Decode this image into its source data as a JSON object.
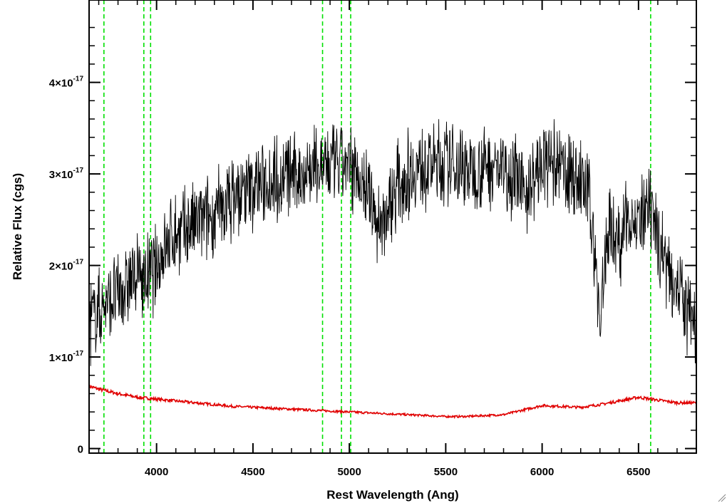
{
  "chart_data": {
    "type": "line",
    "title": "",
    "xlabel": "Rest Wavelength (Ang)",
    "ylabel": "Relative Flux (cgs)",
    "xlim": [
      3650,
      6800
    ],
    "ylim": [
      -5e-19,
      4.9e-17
    ],
    "grid": false,
    "legend": "none",
    "x_ticks": [
      {
        "value": 4000,
        "label": "4000"
      },
      {
        "value": 4500,
        "label": "4500"
      },
      {
        "value": 5000,
        "label": "5000"
      },
      {
        "value": 5500,
        "label": "5500"
      },
      {
        "value": 6000,
        "label": "6000"
      },
      {
        "value": 6500,
        "label": "6500"
      }
    ],
    "y_ticks": [
      {
        "value": 0,
        "mantissa": "0",
        "exp": ""
      },
      {
        "value": 1e-17,
        "mantissa": "1×10",
        "exp": "-17"
      },
      {
        "value": 2e-17,
        "mantissa": "2×10",
        "exp": "-17"
      },
      {
        "value": 3e-17,
        "mantissa": "3×10",
        "exp": "-17"
      },
      {
        "value": 4e-17,
        "mantissa": "4×10",
        "exp": "-17"
      }
    ],
    "reference_lines": {
      "color": "#00e000",
      "style": "dashed",
      "x": [
        3727,
        3934,
        3969,
        4861,
        4959,
        5007,
        6563
      ]
    },
    "series": [
      {
        "role": "spectrum",
        "color": "#000000",
        "x": [
          3650,
          3700,
          3750,
          3800,
          3850,
          3900,
          3950,
          4000,
          4050,
          4100,
          4150,
          4200,
          4250,
          4300,
          4350,
          4400,
          4450,
          4500,
          4550,
          4600,
          4650,
          4700,
          4750,
          4800,
          4850,
          4900,
          4950,
          5000,
          5050,
          5100,
          5150,
          5200,
          5250,
          5300,
          5350,
          5400,
          5450,
          5500,
          5550,
          5600,
          5650,
          5700,
          5750,
          5800,
          5850,
          5900,
          5950,
          6000,
          6050,
          6100,
          6150,
          6200,
          6250,
          6300,
          6350,
          6400,
          6450,
          6500,
          6550,
          6600,
          6650,
          6700,
          6750,
          6800
        ],
        "y": [
          1.4e-17,
          1.5e-17,
          1.6e-17,
          1.7e-17,
          1.8e-17,
          1.9e-17,
          1.85e-17,
          2e-17,
          2.2e-17,
          2.35e-17,
          2.4e-17,
          2.45e-17,
          2.5e-17,
          2.55e-17,
          2.65e-17,
          2.75e-17,
          2.8e-17,
          2.85e-17,
          2.9e-17,
          2.95e-17,
          2.95e-17,
          3e-17,
          3e-17,
          3.05e-17,
          3.05e-17,
          3.1e-17,
          3.1e-17,
          3.05e-17,
          3e-17,
          2.8e-17,
          2.4e-17,
          2.6e-17,
          2.9e-17,
          3e-17,
          3.05e-17,
          3.1e-17,
          3.1e-17,
          3.1e-17,
          3.1e-17,
          3.05e-17,
          3.05e-17,
          3.1e-17,
          3.1e-17,
          3.05e-17,
          3e-17,
          2.8e-17,
          2.9e-17,
          3.1e-17,
          3.1e-17,
          3.05e-17,
          3e-17,
          2.9e-17,
          2.7e-17,
          1.4e-17,
          2.5e-17,
          2.2e-17,
          2.6e-17,
          2.4e-17,
          2.6e-17,
          2.3e-17,
          2e-17,
          1.8e-17,
          1.5e-17,
          1.3e-17
        ]
      },
      {
        "role": "error",
        "color": "#e00000",
        "x": [
          3650,
          3700,
          3800,
          3900,
          4000,
          4100,
          4200,
          4300,
          4400,
          4500,
          4600,
          4700,
          4800,
          4900,
          5000,
          5100,
          5200,
          5300,
          5400,
          5500,
          5600,
          5700,
          5800,
          5900,
          6000,
          6100,
          6200,
          6300,
          6400,
          6500,
          6600,
          6700,
          6800
        ],
        "y": [
          6.8e-18,
          6.5e-18,
          6e-18,
          5.6e-18,
          5.4e-18,
          5.2e-18,
          5e-18,
          4.8e-18,
          4.6e-18,
          4.5e-18,
          4.4e-18,
          4.3e-18,
          4.2e-18,
          4.1e-18,
          4e-18,
          3.9e-18,
          3.8e-18,
          3.7e-18,
          3.6e-18,
          3.5e-18,
          3.5e-18,
          3.6e-18,
          3.7e-18,
          4.2e-18,
          4.7e-18,
          4.6e-18,
          4.5e-18,
          4.8e-18,
          5.2e-18,
          5.6e-18,
          5.3e-18,
          5e-18,
          5e-18
        ]
      }
    ]
  }
}
